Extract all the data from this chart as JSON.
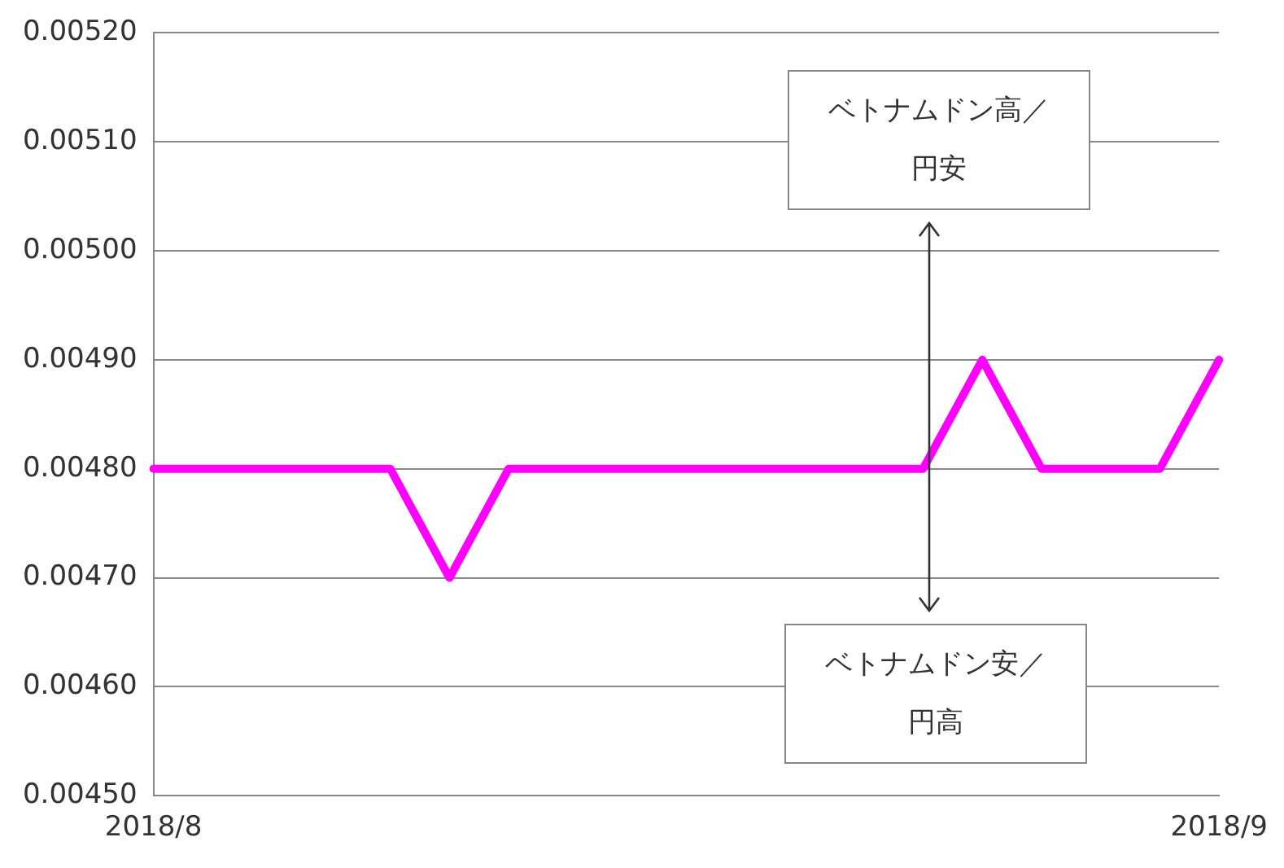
{
  "chart_data": {
    "type": "line",
    "categories": [
      "2018/8",
      null,
      null,
      null,
      null,
      null,
      null,
      null,
      null,
      null,
      null,
      null,
      null,
      null,
      null,
      null,
      null,
      null,
      "2018/9"
    ],
    "series": [
      {
        "color": "#ff00ff",
        "values": [
          0.0048,
          0.0048,
          0.0048,
          0.0048,
          0.0048,
          0.0047,
          0.0048,
          0.0048,
          0.0048,
          0.0048,
          0.0048,
          0.0048,
          0.0048,
          0.0048,
          0.0049,
          0.0048,
          0.0048,
          0.0048,
          0.0049
        ]
      }
    ],
    "ylim": [
      0.0045,
      0.0052
    ],
    "yticks": [
      {
        "value": 0.0045,
        "label": "0.00450"
      },
      {
        "value": 0.0046,
        "label": "0.00460"
      },
      {
        "value": 0.0047,
        "label": "0.00470"
      },
      {
        "value": 0.0048,
        "label": "0.00480"
      },
      {
        "value": 0.0049,
        "label": "0.00490"
      },
      {
        "value": 0.005,
        "label": "0.00500"
      },
      {
        "value": 0.0051,
        "label": "0.00510"
      },
      {
        "value": 0.0052,
        "label": "0.00520"
      }
    ],
    "annotations": [
      "ベトナムドン高／円安",
      "ベトナムドン安／円高"
    ],
    "grid": "y",
    "legend": false,
    "marker": "none",
    "line_style": "solid"
  }
}
